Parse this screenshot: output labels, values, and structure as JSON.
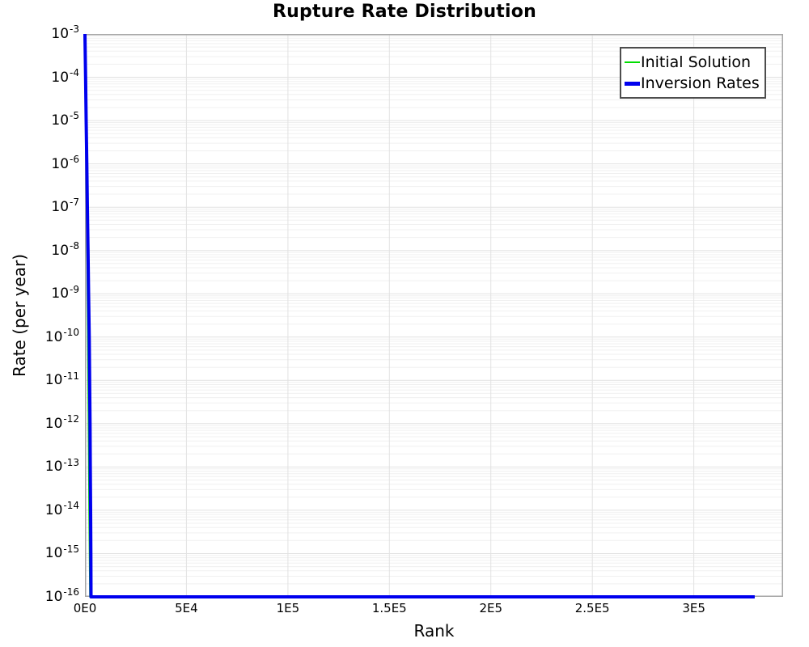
{
  "chart_data": {
    "type": "line",
    "title": "Rupture Rate Distribution",
    "xlabel": "Rank",
    "ylabel": "Rate (per year)",
    "grid": true,
    "background": "#ffffff",
    "colors": {
      "spine": "#a6a6a6",
      "major_grid": "#e2e2e2",
      "minor_grid": "#f0f0f0",
      "legend_border": "#4d4d4d"
    },
    "x_axis": {
      "scale": "linear",
      "min": 0,
      "max": 344000,
      "ticks": [
        {
          "value": 0,
          "label": "0E0"
        },
        {
          "value": 50000,
          "label": "5E4"
        },
        {
          "value": 100000,
          "label": "1E5"
        },
        {
          "value": 150000,
          "label": "1.5E5"
        },
        {
          "value": 200000,
          "label": "2E5"
        },
        {
          "value": 250000,
          "label": "2.5E5"
        },
        {
          "value": 300000,
          "label": "3E5"
        }
      ]
    },
    "y_axis": {
      "scale": "log",
      "min_exponent": -16,
      "max_exponent": -3,
      "tick_base": "10",
      "tick_exponents": [
        -3,
        -4,
        -5,
        -6,
        -7,
        -8,
        -9,
        -10,
        -11,
        -12,
        -13,
        -14,
        -15,
        -16
      ]
    },
    "legend": {
      "position": "top-right",
      "entries": [
        {
          "label": "Initial Solution",
          "color": "#00dd00",
          "sample_thickness": 2
        },
        {
          "label": "Inversion Rates",
          "color": "#0000ee",
          "sample_thickness": 5
        }
      ]
    },
    "series": [
      {
        "name": "Initial Solution",
        "color": "#00dd00",
        "line_width": 1.5,
        "points": [
          [
            0,
            0.001
          ],
          [
            500,
            1e-06
          ],
          [
            1000,
            1e-08
          ],
          [
            1500,
            1e-11
          ],
          [
            2000,
            1e-14
          ],
          [
            2400,
            1e-16
          ],
          [
            330000,
            1e-16
          ]
        ]
      },
      {
        "name": "Inversion Rates",
        "color": "#0000ee",
        "line_width": 4,
        "points": [
          [
            0,
            0.001
          ],
          [
            300,
            0.0001
          ],
          [
            600,
            1e-05
          ],
          [
            900,
            1e-06
          ],
          [
            1200,
            1e-07
          ],
          [
            1500,
            1e-08
          ],
          [
            1800,
            1e-09
          ],
          [
            2100,
            1e-10
          ],
          [
            2300,
            1e-11
          ],
          [
            2500,
            1e-12
          ],
          [
            2650,
            1e-13
          ],
          [
            2800,
            1e-14
          ],
          [
            2900,
            1e-15
          ],
          [
            3000,
            1e-16
          ],
          [
            330000,
            1e-16
          ]
        ]
      }
    ]
  }
}
